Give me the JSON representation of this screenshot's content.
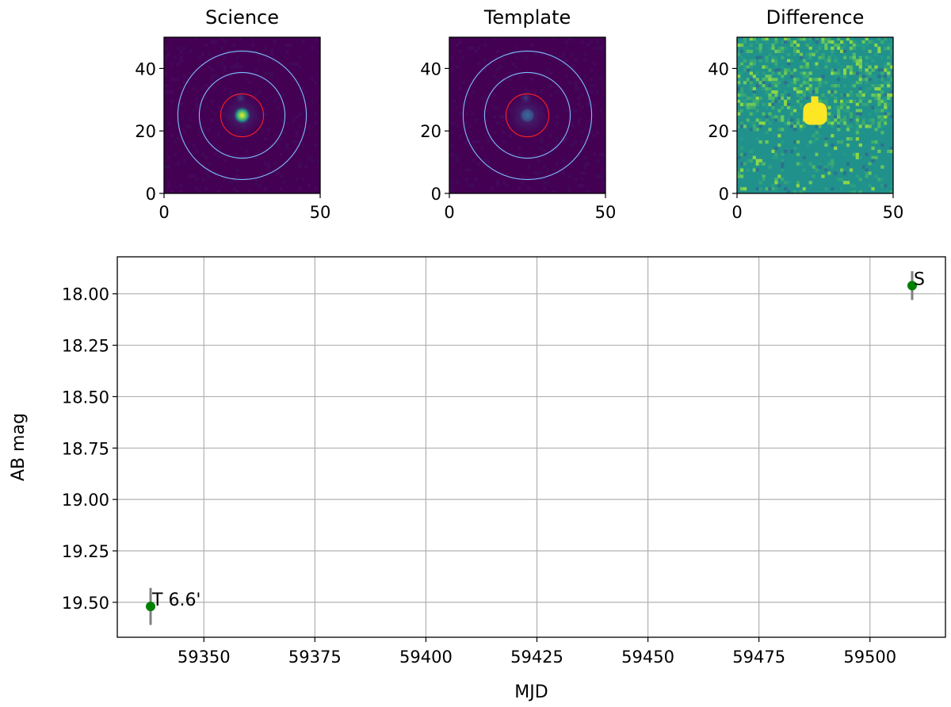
{
  "chart_data": [
    {
      "type": "heatmap",
      "title": "Science",
      "xlim": [
        0,
        50
      ],
      "ylim": [
        0,
        50
      ],
      "xticks": [
        "0",
        "50"
      ],
      "yticks": [
        "0",
        "20",
        "40"
      ],
      "colormap": "viridis",
      "source": {
        "center": [
          25,
          25
        ],
        "peak": "bright"
      },
      "apertures": [
        {
          "radius": 7,
          "color": "#ff2020"
        },
        {
          "radius": 14,
          "color": "#7fbfff"
        },
        {
          "radius": 21,
          "color": "#7fbfff"
        }
      ]
    },
    {
      "type": "heatmap",
      "title": "Template",
      "xlim": [
        0,
        50
      ],
      "ylim": [
        0,
        50
      ],
      "xticks": [
        "0",
        "50"
      ],
      "yticks": [
        "0",
        "20",
        "40"
      ],
      "colormap": "viridis",
      "source": {
        "center": [
          25,
          25
        ],
        "peak": "faint"
      },
      "apertures": [
        {
          "radius": 7,
          "color": "#ff2020"
        },
        {
          "radius": 14,
          "color": "#7fbfff"
        },
        {
          "radius": 21,
          "color": "#7fbfff"
        }
      ]
    },
    {
      "type": "heatmap",
      "title": "Difference",
      "xlim": [
        0,
        50
      ],
      "ylim": [
        0,
        50
      ],
      "xticks": [
        "0",
        "50"
      ],
      "yticks": [
        "0",
        "20",
        "40"
      ],
      "colormap": "viridis",
      "source": {
        "center": [
          25,
          25
        ],
        "peak": "saturated"
      }
    },
    {
      "type": "scatter",
      "xlabel": "MJD",
      "ylabel": "AB mag",
      "xlim": [
        59330.5,
        59517
      ],
      "ylim": [
        19.67,
        17.82
      ],
      "y_inverted": true,
      "grid": true,
      "xticks": [
        59350,
        59375,
        59400,
        59425,
        59450,
        59475,
        59500
      ],
      "yticks": [
        18.0,
        18.25,
        18.5,
        18.75,
        19.0,
        19.25,
        19.5
      ],
      "ytick_labels": [
        "18.00",
        "18.25",
        "18.50",
        "18.75",
        "19.00",
        "19.25",
        "19.50"
      ],
      "points": [
        {
          "x": 59338,
          "y": 19.52,
          "yerr": 0.09,
          "label": "T 6.6'"
        },
        {
          "x": 59509.5,
          "y": 17.96,
          "yerr": 0.07,
          "label": "S"
        }
      ],
      "marker_color": "#008000",
      "errorbar_color": "#808080",
      "label_color": "#0000ff"
    }
  ]
}
